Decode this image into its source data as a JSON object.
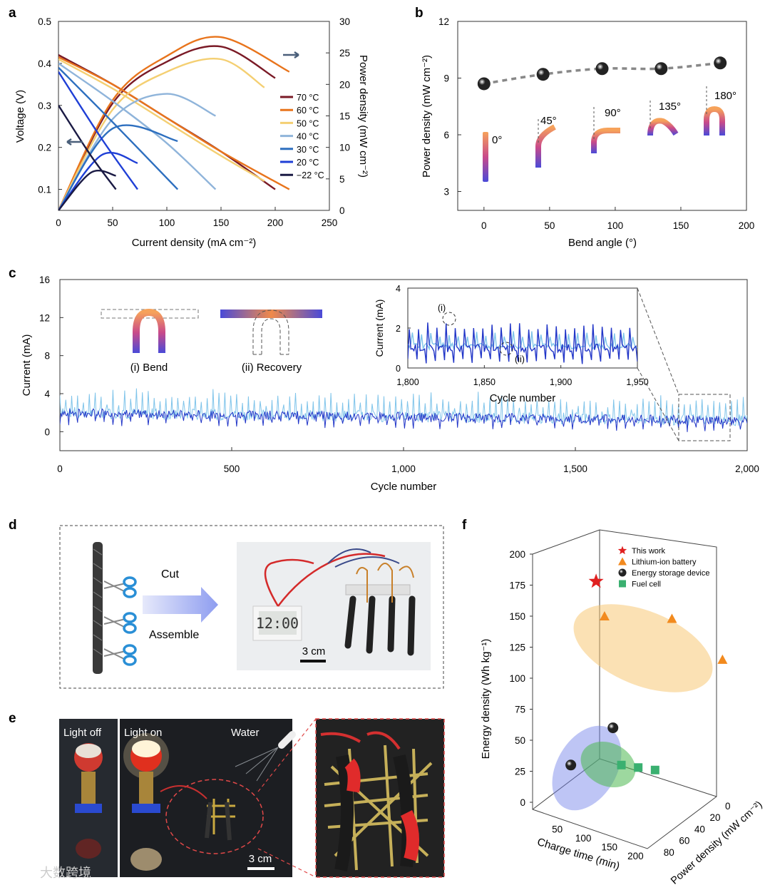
{
  "panel_letters": {
    "a": "a",
    "b": "b",
    "c": "c",
    "d": "d",
    "e": "e",
    "f": "f"
  },
  "chart_data": [
    {
      "panel": "a",
      "type": "line",
      "xlabel": "Current density (mA cm⁻²)",
      "ylabel_left": "Voltage (V)",
      "ylabel_right": "Power density (mW cm⁻²)",
      "xlim": [
        0,
        250
      ],
      "ylim_left": [
        0.05,
        0.5
      ],
      "ylim_right": [
        0,
        30
      ],
      "x_ticks": [
        "0",
        "50",
        "100",
        "150",
        "200",
        "250"
      ],
      "y_ticks_left": [
        "0.1",
        "0.2",
        "0.3",
        "0.4",
        "0.5"
      ],
      "y_ticks_right": [
        "0",
        "5",
        "10",
        "15",
        "20",
        "25",
        "30"
      ],
      "legend_position": "right",
      "series": [
        {
          "name": "70 °C",
          "color": "#7a1a26",
          "voltage": {
            "x": [
              0,
              50,
              100,
              150,
              200
            ],
            "y": [
              0.42,
              0.35,
              0.27,
              0.19,
              0.1
            ]
          },
          "power": {
            "x": [
              0,
              50,
              100,
              150,
              200
            ],
            "y": [
              0,
              17.0,
              23.6,
              26.0,
              21.0
            ]
          }
        },
        {
          "name": "60 °C",
          "color": "#e8741c",
          "voltage": {
            "x": [
              0,
              50,
              100,
              150,
              213
            ],
            "y": [
              0.415,
              0.35,
              0.27,
              0.19,
              0.1
            ]
          },
          "power": {
            "x": [
              0,
              50,
              100,
              150,
              213
            ],
            "y": [
              0,
              17.5,
              24.5,
              27.5,
              22.0
            ]
          }
        },
        {
          "name": "50 °C",
          "color": "#f4cf72",
          "voltage": {
            "x": [
              0,
              50,
              100,
              150,
              190
            ],
            "y": [
              0.41,
              0.34,
              0.26,
              0.18,
              0.12
            ]
          },
          "power": {
            "x": [
              0,
              50,
              100,
              150,
              190
            ],
            "y": [
              0,
              16.0,
              22.0,
              24.0,
              19.5
            ]
          }
        },
        {
          "name": "40 °C",
          "color": "#8fb4da",
          "voltage": {
            "x": [
              0,
              50,
              100,
              145
            ],
            "y": [
              0.4,
              0.31,
              0.21,
              0.1
            ]
          },
          "power": {
            "x": [
              0,
              50,
              100,
              145
            ],
            "y": [
              0,
              14.5,
              18.5,
              15.0
            ]
          }
        },
        {
          "name": "30 °C",
          "color": "#2d6fbf",
          "voltage": {
            "x": [
              0,
              50,
              110
            ],
            "y": [
              0.39,
              0.26,
              0.1
            ]
          },
          "power": {
            "x": [
              0,
              50,
              110
            ],
            "y": [
              0,
              13.0,
              11.0
            ]
          }
        },
        {
          "name": "20 °C",
          "color": "#1f3fd6",
          "voltage": {
            "x": [
              0,
              40,
              73
            ],
            "y": [
              0.38,
              0.22,
              0.1
            ]
          },
          "power": {
            "x": [
              0,
              40,
              73
            ],
            "y": [
              0,
              8.8,
              7.5
            ]
          }
        },
        {
          "name": "−22 °C",
          "color": "#1a1a44",
          "voltage": {
            "x": [
              0,
              30,
              53
            ],
            "y": [
              0.3,
              0.18,
              0.1
            ]
          },
          "power": {
            "x": [
              0,
              30,
              53
            ],
            "y": [
              0,
              6.0,
              5.5
            ]
          }
        }
      ]
    },
    {
      "panel": "b",
      "type": "scatter",
      "xlabel": "Bend angle (°)",
      "ylabel": "Power density (mW cm⁻²)",
      "xlim": [
        -20,
        200
      ],
      "ylim": [
        2,
        12
      ],
      "x_ticks": [
        "0",
        "50",
        "100",
        "150",
        "200"
      ],
      "y_ticks": [
        "3",
        "6",
        "9",
        "12"
      ],
      "x": [
        0,
        45,
        90,
        135,
        180
      ],
      "y": [
        8.7,
        9.2,
        9.5,
        9.5,
        9.8
      ],
      "point_colors": [
        "#111111",
        "#b57fe0",
        "#2aa24a",
        "#2a6fd6",
        "#e23030"
      ],
      "angle_labels": [
        "0°",
        "45°",
        "90°",
        "135°",
        "180°"
      ]
    },
    {
      "panel": "c",
      "type": "line",
      "xlabel": "Cycle number",
      "ylabel": "Current (mA)",
      "xlim": [
        0,
        2000
      ],
      "ylim": [
        -2,
        16
      ],
      "x_ticks": [
        "0",
        "500",
        "1,000",
        "1,500",
        "2,000"
      ],
      "y_ticks": [
        "0",
        "4",
        "8",
        "12",
        "16"
      ],
      "baseline_current_start": 2.0,
      "baseline_current_end": 1.2,
      "inset": {
        "xlabel": "Cycle number",
        "ylabel": "Current (mA)",
        "xlim": [
          1800,
          1950
        ],
        "ylim": [
          0,
          4
        ],
        "x_ticks": [
          "1,800",
          "1,850",
          "1,900",
          "1,950"
        ],
        "y_ticks": [
          "0",
          "2",
          "4"
        ],
        "annotations": [
          "(i)",
          "(ii)"
        ]
      },
      "schematic_labels": [
        "(i) Bend",
        "(ii) Recovery"
      ]
    },
    {
      "panel": "f",
      "type": "scatter",
      "xlabel": "Charge time (min)",
      "ylabel": "Energy density (Wh kg⁻¹)",
      "zlabel": "Power density (mW cm⁻²)",
      "y_ticks": [
        "0",
        "25",
        "50",
        "75",
        "100",
        "125",
        "150",
        "175",
        "200"
      ],
      "x_ticks": [
        "50",
        "100",
        "150",
        "200"
      ],
      "z_ticks": [
        "0",
        "20",
        "40",
        "60",
        "80"
      ],
      "legend_position": "top-right",
      "series": [
        {
          "name": "This work",
          "marker": "star",
          "color": "#e02020",
          "points": [
            {
              "charge_time": 50,
              "energy_density": 178
            }
          ]
        },
        {
          "name": "Lithium-ion battery",
          "marker": "triangle",
          "color": "#f28a1e",
          "points": [
            {
              "charge_time": 60,
              "energy_density": 150
            },
            {
              "charge_time": 140,
              "energy_density": 148
            },
            {
              "charge_time": 200,
              "energy_density": 115
            }
          ]
        },
        {
          "name": "Energy storage device",
          "marker": "sphere",
          "color": "#4a4ad8",
          "points": [
            {
              "charge_time": 20,
              "energy_density": 30
            },
            {
              "charge_time": 70,
              "energy_density": 60
            }
          ]
        },
        {
          "name": "Fuel cell",
          "marker": "cube",
          "color": "#3ab070",
          "points": [
            {
              "charge_time": 80,
              "energy_density": 30
            },
            {
              "charge_time": 100,
              "energy_density": 28
            },
            {
              "charge_time": 120,
              "energy_density": 26
            }
          ]
        }
      ]
    }
  ],
  "panel_d": {
    "cut": "Cut",
    "assemble": "Assemble",
    "scale": "3 cm",
    "clock": "12:00"
  },
  "panel_e": {
    "light_off": "Light off",
    "light_on": "Light on",
    "water": "Water",
    "scale": "3 cm"
  },
  "watermark": "大数跨境"
}
